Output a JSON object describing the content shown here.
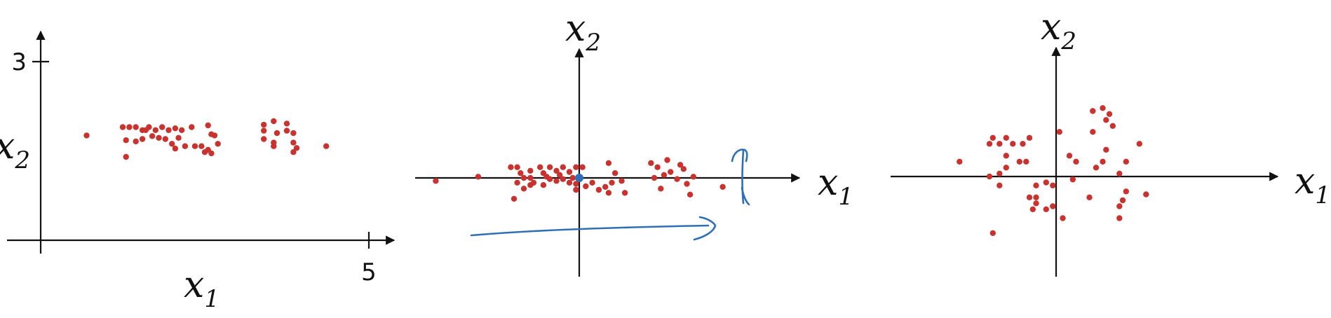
{
  "colors": {
    "point": "#c8332f",
    "axis": "#111111",
    "pen": "#2e6fb5",
    "origin_marker": "#2e6fb5"
  },
  "chart_data": [
    {
      "type": "scatter",
      "title": "",
      "xlabel": "x",
      "xlabel_sub": "1",
      "ylabel": "x",
      "ylabel_sub": "2",
      "xlim": [
        0,
        5
      ],
      "ylim": [
        0,
        3
      ],
      "ticks": {
        "x": [
          "5"
        ],
        "y": [
          "3"
        ]
      },
      "points": [
        [
          0.7,
          1.76
        ],
        [
          1.25,
          1.9
        ],
        [
          1.35,
          1.9
        ],
        [
          1.45,
          1.9
        ],
        [
          1.55,
          1.85
        ],
        [
          1.6,
          1.85
        ],
        [
          1.65,
          1.9
        ],
        [
          1.75,
          1.85
        ],
        [
          1.85,
          1.9
        ],
        [
          1.95,
          1.85
        ],
        [
          2.05,
          1.88
        ],
        [
          2.15,
          1.85
        ],
        [
          2.3,
          1.9
        ],
        [
          2.55,
          1.93
        ],
        [
          2.6,
          1.78
        ],
        [
          2.65,
          1.76
        ],
        [
          1.3,
          1.68
        ],
        [
          1.45,
          1.66
        ],
        [
          1.55,
          1.7
        ],
        [
          1.7,
          1.75
        ],
        [
          1.8,
          1.72
        ],
        [
          1.9,
          1.7
        ],
        [
          2.1,
          1.72
        ],
        [
          2.2,
          1.58
        ],
        [
          2.35,
          1.58
        ],
        [
          2.45,
          1.58
        ],
        [
          2.55,
          1.52
        ],
        [
          2.7,
          1.62
        ],
        [
          2.5,
          1.48
        ],
        [
          2.0,
          1.62
        ],
        [
          2.05,
          1.54
        ],
        [
          1.3,
          1.4
        ],
        [
          2.6,
          1.46
        ],
        [
          3.4,
          1.94
        ],
        [
          3.55,
          2.0
        ],
        [
          3.75,
          1.96
        ],
        [
          3.4,
          1.84
        ],
        [
          3.6,
          1.8
        ],
        [
          3.75,
          1.84
        ],
        [
          3.85,
          1.8
        ],
        [
          3.4,
          1.7
        ],
        [
          3.55,
          1.64
        ],
        [
          3.85,
          1.64
        ],
        [
          3.9,
          1.55
        ],
        [
          3.55,
          1.58
        ],
        [
          3.85,
          1.48
        ],
        [
          4.35,
          1.58
        ]
      ]
    },
    {
      "type": "scatter",
      "title": "",
      "xlabel": "x",
      "xlabel_sub": "1",
      "ylabel": "x",
      "ylabel_sub": "2",
      "xlim": [
        -2.5,
        3.5
      ],
      "ylim": [
        -2.0,
        2.2
      ],
      "annotations": [
        "mean-centred origin marker",
        "horizontal arrow along x1",
        "vertical arrow along x2"
      ],
      "points": [
        [
          -2.2,
          -0.05
        ],
        [
          -1.55,
          0.02
        ],
        [
          -1.05,
          0.18
        ],
        [
          -0.95,
          0.18
        ],
        [
          -0.9,
          0.08
        ],
        [
          -0.85,
          0.0
        ],
        [
          -0.75,
          0.12
        ],
        [
          -0.75,
          0.0
        ],
        [
          -0.7,
          -0.08
        ],
        [
          -0.6,
          0.18
        ],
        [
          -0.55,
          0.08
        ],
        [
          -0.5,
          0.02
        ],
        [
          -0.45,
          0.18
        ],
        [
          -0.35,
          0.12
        ],
        [
          -0.3,
          0.05
        ],
        [
          -0.25,
          0.18
        ],
        [
          -0.15,
          0.1
        ],
        [
          -0.1,
          0.0
        ],
        [
          -0.05,
          0.18
        ],
        [
          -0.95,
          -0.08
        ],
        [
          -0.85,
          -0.18
        ],
        [
          -0.75,
          -0.12
        ],
        [
          -0.55,
          -0.12
        ],
        [
          -0.45,
          -0.02
        ],
        [
          -0.35,
          -0.05
        ],
        [
          -0.25,
          -0.02
        ],
        [
          -0.15,
          -0.08
        ],
        [
          -0.05,
          -0.1
        ],
        [
          -0.05,
          -0.2
        ],
        [
          0.05,
          0.18
        ],
        [
          0.1,
          -0.14
        ],
        [
          0.2,
          -0.08
        ],
        [
          0.3,
          -0.2
        ],
        [
          0.4,
          -0.15
        ],
        [
          0.45,
          -0.25
        ],
        [
          0.5,
          -0.08
        ],
        [
          0.45,
          0.25
        ],
        [
          0.55,
          0.08
        ],
        [
          0.65,
          -0.05
        ],
        [
          0.7,
          -0.25
        ],
        [
          1.1,
          0.25
        ],
        [
          1.15,
          0.0
        ],
        [
          1.2,
          0.18
        ],
        [
          1.25,
          -0.18
        ],
        [
          1.3,
          0.05
        ],
        [
          1.35,
          0.3
        ],
        [
          1.4,
          0.1
        ],
        [
          1.5,
          -0.02
        ],
        [
          1.55,
          0.22
        ],
        [
          1.6,
          0.15
        ],
        [
          1.65,
          -0.1
        ],
        [
          1.75,
          0.02
        ],
        [
          1.7,
          -0.28
        ],
        [
          2.2,
          -0.15
        ],
        [
          -1.0,
          -0.35
        ]
      ]
    },
    {
      "type": "scatter",
      "title": "",
      "xlabel": "x",
      "xlabel_sub": "1",
      "ylabel": "x",
      "ylabel_sub": "2",
      "xlim": [
        -2.4,
        3.2
      ],
      "ylim": [
        -2.2,
        2.5
      ],
      "points": [
        [
          -1.45,
          0.25
        ],
        [
          -0.95,
          0.65
        ],
        [
          -1.0,
          0.55
        ],
        [
          -0.85,
          0.55
        ],
        [
          -0.75,
          0.65
        ],
        [
          -0.65,
          0.55
        ],
        [
          -0.5,
          0.55
        ],
        [
          -0.4,
          0.65
        ],
        [
          -0.75,
          0.35
        ],
        [
          -0.55,
          0.25
        ],
        [
          -0.75,
          0.15
        ],
        [
          -0.45,
          0.25
        ],
        [
          -0.85,
          0.05
        ],
        [
          -1.0,
          0.0
        ],
        [
          -0.85,
          -0.15
        ],
        [
          -0.3,
          -0.15
        ],
        [
          -0.3,
          -0.35
        ],
        [
          -0.4,
          -0.35
        ],
        [
          -0.3,
          -0.45
        ],
        [
          -0.35,
          -0.55
        ],
        [
          -0.15,
          -0.55
        ],
        [
          -0.05,
          -0.5
        ],
        [
          -0.05,
          -0.15
        ],
        [
          -0.15,
          -0.1
        ],
        [
          0.1,
          -0.7
        ],
        [
          -0.95,
          -0.95
        ],
        [
          0.05,
          0.75
        ],
        [
          0.2,
          0.35
        ],
        [
          0.3,
          0.25
        ],
        [
          0.25,
          -0.05
        ],
        [
          0.6,
          0.15
        ],
        [
          0.75,
          0.45
        ],
        [
          0.55,
          0.75
        ],
        [
          0.7,
          0.25
        ],
        [
          0.95,
          0.05
        ],
        [
          0.95,
          -0.5
        ],
        [
          1.0,
          -0.4
        ],
        [
          0.5,
          -0.35
        ],
        [
          0.75,
          0.95
        ],
        [
          0.85,
          0.85
        ],
        [
          0.8,
          1.05
        ],
        [
          0.7,
          1.15
        ],
        [
          1.05,
          0.25
        ],
        [
          1.05,
          -0.25
        ],
        [
          1.35,
          -0.3
        ],
        [
          0.95,
          -0.7
        ],
        [
          1.25,
          0.55
        ],
        [
          0.55,
          1.1
        ]
      ]
    }
  ]
}
